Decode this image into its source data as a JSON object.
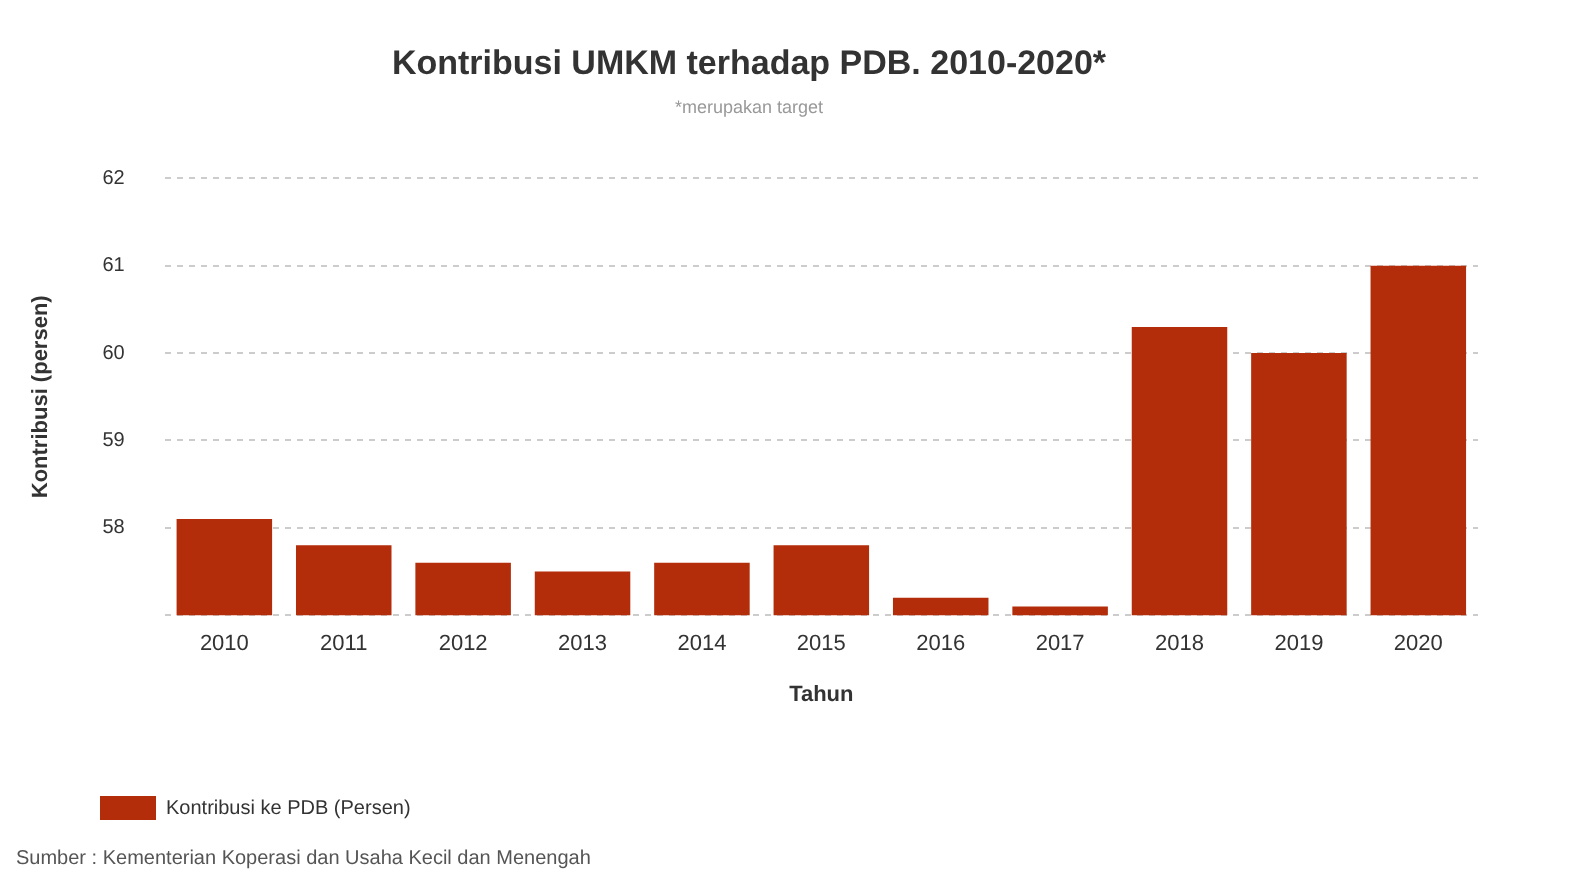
{
  "chart_data": {
    "type": "bar",
    "title": "Kontribusi UMKM terhadap PDB. 2010-2020*",
    "subtitle": "*merupakan target",
    "xlabel": "Tahun",
    "ylabel": "Kontribusi (persen)",
    "categories": [
      "2010",
      "2011",
      "2012",
      "2013",
      "2014",
      "2015",
      "2016",
      "2017",
      "2018",
      "2019",
      "2020"
    ],
    "series": [
      {
        "name": "Kontribusi ke PDB (Persen)",
        "color": "#b32d0a",
        "values": [
          58.1,
          57.8,
          57.6,
          57.5,
          57.6,
          57.8,
          57.2,
          57.1,
          60.3,
          60.0,
          61.0
        ]
      }
    ],
    "ylim": [
      57,
      62
    ],
    "yticks": [
      {
        "value": 57,
        "label": null
      },
      58,
      59,
      60,
      61,
      62
    ],
    "grid": "y",
    "legend": "bottom left",
    "annotations": [
      "Sumber : Kementerian Koperasi dan Usaha Kecil dan Menengah"
    ]
  }
}
